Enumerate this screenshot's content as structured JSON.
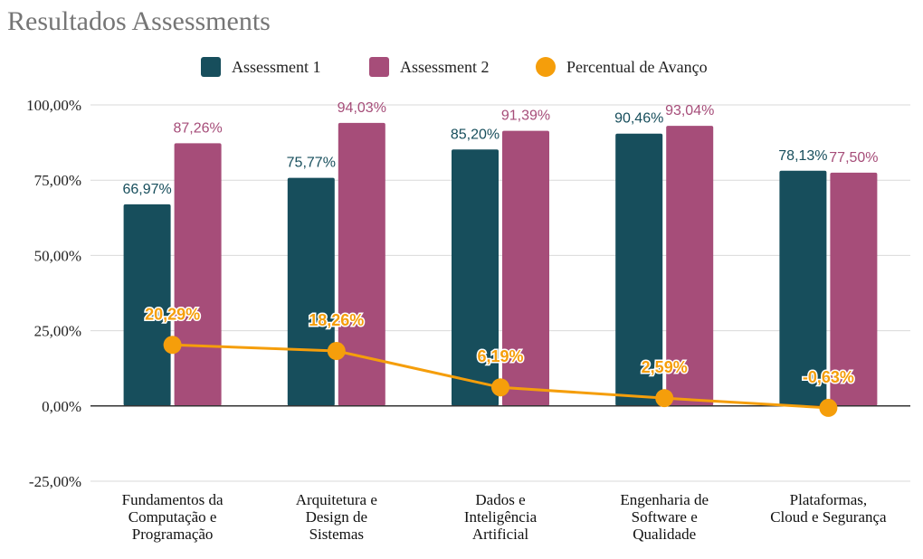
{
  "chart_data": {
    "type": "bar",
    "title": "Resultados Assessments",
    "xlabel": "",
    "ylabel": "",
    "ylim": [
      -25,
      100
    ],
    "yticks": [
      100,
      75,
      50,
      25,
      0,
      -25
    ],
    "ytick_labels": [
      "100,00%",
      "75,00%",
      "50,00%",
      "25,00%",
      "0,00%",
      "-25,00%"
    ],
    "grid": true,
    "legend_position": "top",
    "categories": [
      [
        "Fundamentos da",
        "Computação e",
        "Programação"
      ],
      [
        "Arquitetura e",
        "Design de",
        "Sistemas"
      ],
      [
        "Dados e",
        "Inteligência",
        "Artificial"
      ],
      [
        "Engenharia de",
        "Software e",
        "Qualidade"
      ],
      [
        "Plataformas,",
        "Cloud e Segurança"
      ]
    ],
    "series": [
      {
        "name": "Assessment 1",
        "kind": "bar",
        "color": "#174e5c",
        "values": [
          66.97,
          75.77,
          85.2,
          90.46,
          78.13
        ],
        "labels": [
          "66,97%",
          "75,77%",
          "85,20%",
          "90,46%",
          "78,13%"
        ]
      },
      {
        "name": "Assessment 2",
        "kind": "bar",
        "color": "#a64d79",
        "values": [
          87.26,
          94.03,
          91.39,
          93.04,
          77.5
        ],
        "labels": [
          "87,26%",
          "94,03%",
          "91,39%",
          "93,04%",
          "77,50%"
        ]
      },
      {
        "name": "Percentual de Avanço",
        "kind": "line",
        "color": "#f59e0b",
        "values": [
          20.29,
          18.26,
          6.19,
          2.59,
          -0.63
        ],
        "labels": [
          "20,29%",
          "18,26%",
          "6,19%",
          "2,59%",
          "-0,63%"
        ]
      }
    ]
  }
}
